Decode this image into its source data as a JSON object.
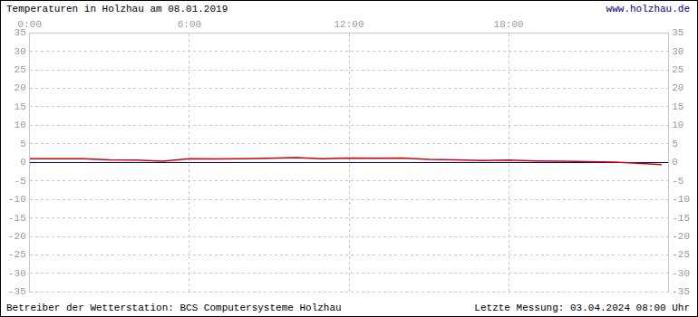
{
  "chart_data": {
    "type": "line",
    "title": "Temperaturen in Holzhau am 08.01.2019",
    "annotations": [
      "www.holzhau.de",
      "Betreiber der Wetterstation: BCS Computersysteme Holzhau",
      "Letzte Messung: 03.04.2024 08:00 Uhr"
    ],
    "x": [
      0,
      1,
      2,
      3,
      4,
      5,
      6,
      7,
      8,
      9,
      10,
      11,
      12,
      13,
      14,
      15,
      16,
      17,
      18,
      19,
      20,
      21,
      22,
      23,
      23.75
    ],
    "values": [
      1.0,
      1.0,
      1.0,
      0.7,
      0.6,
      0.3,
      1.0,
      0.9,
      1.0,
      1.1,
      1.3,
      1.0,
      1.2,
      1.1,
      1.2,
      0.8,
      0.7,
      0.5,
      0.6,
      0.4,
      0.3,
      0.2,
      0.1,
      -0.3,
      -0.6
    ],
    "color": "#cc0000",
    "xlim": [
      0,
      24
    ],
    "xticks": [
      {
        "value": 0,
        "label": "0:00"
      },
      {
        "value": 6,
        "label": "6:00"
      },
      {
        "value": 12,
        "label": "12:00"
      },
      {
        "value": 18,
        "label": "18:00"
      }
    ],
    "ylim": [
      -35,
      35
    ],
    "yticks": [
      -35,
      -30,
      -25,
      -20,
      -15,
      -10,
      -5,
      0,
      5,
      10,
      15,
      20,
      25,
      30,
      35
    ],
    "y2lim": [
      -35,
      35
    ],
    "y2ticks": [
      -35,
      -30,
      -25,
      -20,
      -15,
      -10,
      -5,
      0,
      5,
      10,
      15,
      20,
      25,
      30,
      35
    ],
    "grid": true
  }
}
